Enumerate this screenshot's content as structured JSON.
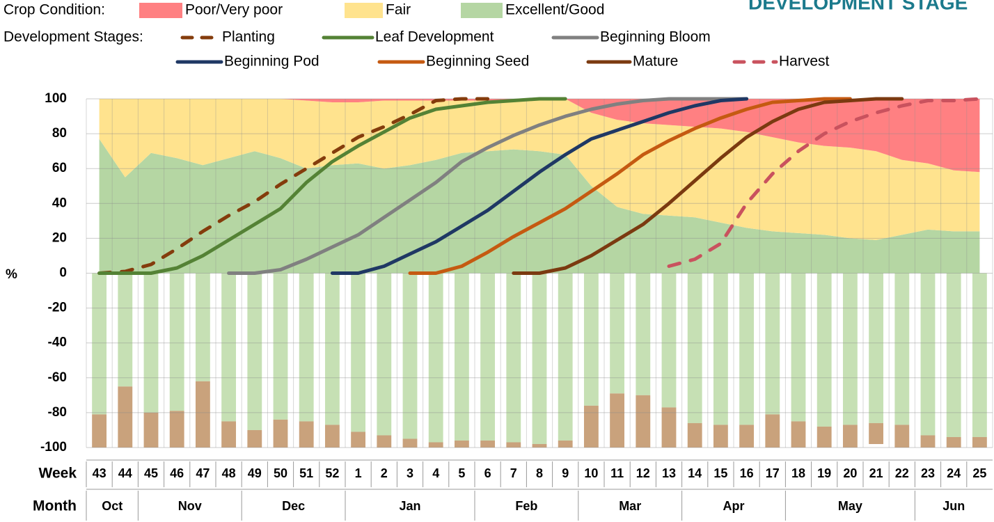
{
  "chart_data": {
    "type": "area",
    "title": "DEVELOPMENT STAGE",
    "crop_legend_label": "Crop Condition:",
    "stage_legend_label": "Development Stages:",
    "y_label": "%",
    "week_label": "Week",
    "month_label": "Month",
    "categories": [
      "43",
      "44",
      "45",
      "46",
      "47",
      "48",
      "49",
      "50",
      "51",
      "52",
      "1",
      "2",
      "3",
      "4",
      "5",
      "6",
      "7",
      "8",
      "9",
      "10",
      "11",
      "12",
      "13",
      "14",
      "15",
      "16",
      "17",
      "18",
      "19",
      "20",
      "21",
      "22",
      "23",
      "24",
      "25"
    ],
    "months": [
      {
        "label": "Oct",
        "weeks": 2
      },
      {
        "label": "Nov",
        "weeks": 4
      },
      {
        "label": "Dec",
        "weeks": 4
      },
      {
        "label": "Jan",
        "weeks": 5
      },
      {
        "label": "Feb",
        "weeks": 4
      },
      {
        "label": "Mar",
        "weeks": 4
      },
      {
        "label": "Apr",
        "weeks": 4
      },
      {
        "label": "May",
        "weeks": 5
      },
      {
        "label": "Jun",
        "weeks": 3
      }
    ],
    "series": [
      {
        "name": "Excellent/Good",
        "color": "#b5d6a3",
        "values": [
          77,
          55,
          69,
          66,
          62,
          66,
          70,
          66,
          60,
          62,
          63,
          60,
          62,
          65,
          69,
          70,
          71,
          70,
          68,
          50,
          38,
          34,
          33,
          32,
          29,
          26,
          24,
          23,
          22,
          20,
          19,
          22,
          25,
          24,
          24
        ]
      },
      {
        "name": "Fair",
        "color": "#ffe38e",
        "values": [
          23,
          45,
          31,
          34,
          38,
          34,
          30,
          34,
          39,
          36,
          35,
          39,
          37,
          34,
          30,
          29,
          28,
          30,
          32,
          42,
          50,
          52,
          52,
          52,
          54,
          55,
          54,
          52,
          51,
          52,
          51,
          43,
          38,
          35,
          34
        ]
      },
      {
        "name": "Poor/Very poor",
        "color": "#ff8082",
        "values": [
          0,
          0,
          0,
          0,
          0,
          0,
          0,
          0,
          1,
          2,
          2,
          1,
          1,
          1,
          1,
          1,
          1,
          0,
          0,
          8,
          12,
          14,
          15,
          16,
          17,
          19,
          22,
          25,
          27,
          28,
          30,
          35,
          37,
          41,
          42
        ]
      }
    ],
    "lines": [
      {
        "name": "Planting",
        "color": "#843c0c",
        "dashed": true,
        "values": [
          0,
          1,
          5,
          14,
          24,
          33,
          41,
          51,
          60,
          69,
          78,
          84,
          91,
          99,
          100,
          100,
          null,
          null,
          null,
          null,
          null,
          null,
          null,
          null,
          null,
          null,
          null,
          null,
          null,
          null,
          null,
          null,
          null,
          null,
          null
        ]
      },
      {
        "name": "Leaf Development",
        "color": "#548235",
        "dashed": false,
        "values": [
          0,
          0,
          0,
          3,
          10,
          19,
          28,
          37,
          52,
          64,
          73,
          81,
          89,
          94,
          96,
          98,
          99,
          100,
          100,
          null,
          null,
          null,
          null,
          null,
          null,
          null,
          null,
          null,
          null,
          null,
          null,
          null,
          null,
          null,
          null
        ]
      },
      {
        "name": "Beginning Bloom",
        "color": "#808080",
        "dashed": false,
        "values": [
          null,
          null,
          null,
          null,
          null,
          0,
          0,
          2,
          8,
          15,
          22,
          32,
          42,
          52,
          64,
          72,
          79,
          85,
          90,
          94,
          97,
          99,
          100,
          100,
          100,
          100,
          null,
          null,
          null,
          null,
          null,
          null,
          null,
          null,
          null
        ]
      },
      {
        "name": "Beginning Pod",
        "color": "#1f3864",
        "dashed": false,
        "values": [
          null,
          null,
          null,
          null,
          null,
          null,
          null,
          null,
          null,
          0,
          0,
          4,
          11,
          18,
          27,
          36,
          47,
          58,
          68,
          77,
          82,
          87,
          92,
          96,
          99,
          100,
          null,
          null,
          null,
          null,
          null,
          null,
          null,
          null,
          null
        ]
      },
      {
        "name": "Beginning Seed",
        "color": "#c55a11",
        "dashed": false,
        "values": [
          null,
          null,
          null,
          null,
          null,
          null,
          null,
          null,
          null,
          null,
          null,
          null,
          0,
          0,
          4,
          12,
          21,
          29,
          37,
          47,
          57,
          68,
          76,
          83,
          89,
          94,
          98,
          99,
          100,
          100,
          null,
          null,
          null,
          null,
          null
        ]
      },
      {
        "name": "Mature",
        "color": "#7b3a10",
        "dashed": false,
        "values": [
          null,
          null,
          null,
          null,
          null,
          null,
          null,
          null,
          null,
          null,
          null,
          null,
          null,
          null,
          null,
          null,
          0,
          0,
          3,
          10,
          19,
          28,
          40,
          53,
          66,
          78,
          87,
          94,
          98,
          99,
          100,
          100,
          null,
          null,
          null
        ]
      },
      {
        "name": "Harvest",
        "color": "#c9525e",
        "dashed": true,
        "values": [
          null,
          null,
          null,
          null,
          null,
          null,
          null,
          null,
          null,
          null,
          null,
          null,
          null,
          null,
          null,
          null,
          null,
          null,
          null,
          null,
          null,
          null,
          4,
          8,
          17,
          40,
          57,
          70,
          80,
          87,
          92,
          96,
          99,
          99,
          100
        ]
      }
    ],
    "bars": [
      {
        "color": "#c6e0b4",
        "values": [
          -81,
          -65,
          -80,
          -79,
          -62,
          -85,
          -90,
          -84,
          -85,
          -87,
          -91,
          -93,
          -95,
          -97,
          -96,
          -96,
          -97,
          -98,
          -96,
          -76,
          -69,
          -70,
          -77,
          -86,
          -87,
          -87,
          -81,
          -85,
          -88,
          -87,
          -86,
          -87,
          -93,
          -94,
          -94
        ]
      },
      {
        "color": "#c9a27c",
        "values": [
          -19,
          -35,
          -20,
          -21,
          -38,
          -15,
          -10,
          -16,
          -15,
          -13,
          -9,
          -7,
          -5,
          -3,
          -4,
          -4,
          -3,
          -2,
          -4,
          -24,
          -31,
          -30,
          -23,
          -14,
          -13,
          -13,
          -19,
          -15,
          -12,
          -13,
          -12,
          -13,
          -7,
          -6,
          -6
        ]
      }
    ],
    "ylim": [
      -100,
      100
    ],
    "yticks": [
      -100,
      -80,
      -60,
      -40,
      -20,
      0,
      20,
      40,
      60,
      80,
      100
    ],
    "grid": true
  }
}
